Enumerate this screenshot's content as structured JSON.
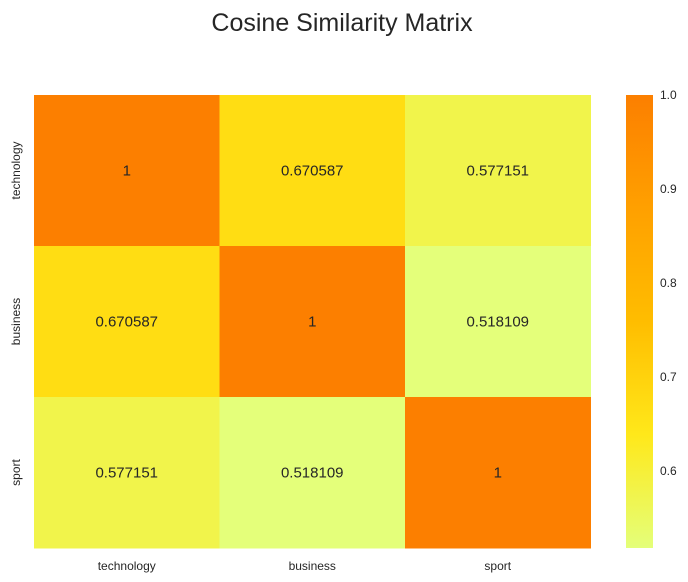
{
  "chart_data": {
    "type": "heatmap",
    "title": "Cosine Similarity Matrix",
    "x_categories": [
      "technology",
      "business",
      "sport"
    ],
    "y_categories": [
      "technology",
      "business",
      "sport"
    ],
    "values": [
      [
        1,
        0.670587,
        0.577151
      ],
      [
        0.670587,
        1,
        0.518109
      ],
      [
        0.577151,
        0.518109,
        1
      ]
    ],
    "cell_labels": [
      [
        "1",
        "0.670587",
        "0.577151"
      ],
      [
        "0.670587",
        "1",
        "0.518109"
      ],
      [
        "0.577151",
        "0.518109",
        "1"
      ]
    ],
    "colormap": "Wistia",
    "color_stops": [
      "#e4ff7a",
      "#ffe81a",
      "#ffbd00",
      "#ffa000",
      "#fc7f00"
    ],
    "colorbar": {
      "range": [
        0.518109,
        1.0
      ],
      "ticks": [
        0.6,
        0.7,
        0.8,
        0.9,
        1.0
      ],
      "tick_labels": [
        "0.6",
        "0.7",
        "0.8",
        "0.9",
        "1.0"
      ]
    },
    "grid": false
  }
}
